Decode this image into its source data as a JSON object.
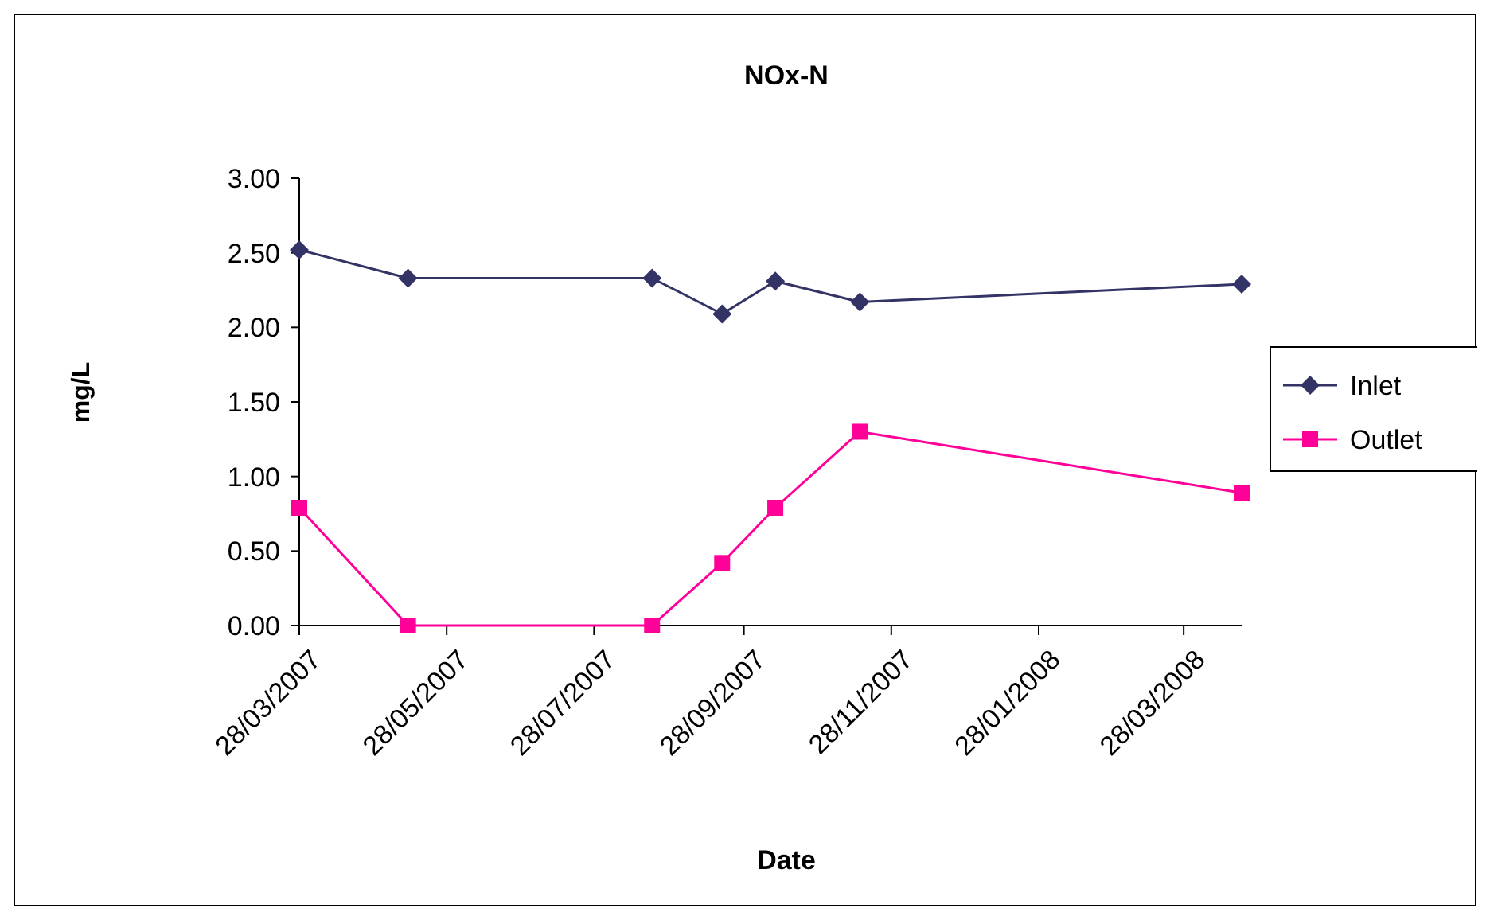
{
  "chart_data": {
    "type": "line",
    "title": "NOx-N",
    "xlabel": "Date",
    "ylabel": "mg/L",
    "x": [
      "2007-03-28",
      "2007-05-12",
      "2007-08-21",
      "2007-09-19",
      "2007-10-11",
      "2007-11-15",
      "2008-04-21"
    ],
    "series": [
      {
        "name": "Inlet",
        "color": "#333366",
        "values": [
          2.52,
          2.33,
          2.33,
          2.09,
          2.31,
          2.17,
          2.29
        ],
        "marker": "diamond"
      },
      {
        "name": "Outlet",
        "color": "#ff0099",
        "values": [
          0.79,
          0,
          0,
          0.42,
          0.79,
          1.3,
          0.89
        ],
        "marker": "square"
      }
    ],
    "xlim": [
      "2007-03-28",
      "2008-04-21"
    ],
    "xticks": [
      {
        "value": "2007-03-28",
        "label": "28/03/2007"
      },
      {
        "value": "2007-05-28",
        "label": "28/05/2007"
      },
      {
        "value": "2007-07-28",
        "label": "28/07/2007"
      },
      {
        "value": "2007-09-28",
        "label": "28/09/2007"
      },
      {
        "value": "2007-11-28",
        "label": "28/11/2007"
      },
      {
        "value": "2008-01-28",
        "label": "28/01/2008"
      },
      {
        "value": "2008-03-28",
        "label": "28/03/2008"
      }
    ],
    "ylim": [
      0,
      3
    ],
    "yticks": [
      {
        "value": 0,
        "label": "0.00"
      },
      {
        "value": 0.5,
        "label": "0.50"
      },
      {
        "value": 1,
        "label": "1.00"
      },
      {
        "value": 1.5,
        "label": "1.50"
      },
      {
        "value": 2,
        "label": "2.00"
      },
      {
        "value": 2.5,
        "label": "2.50"
      },
      {
        "value": 3,
        "label": "3.00"
      }
    ],
    "legend": "right",
    "grid": false
  }
}
